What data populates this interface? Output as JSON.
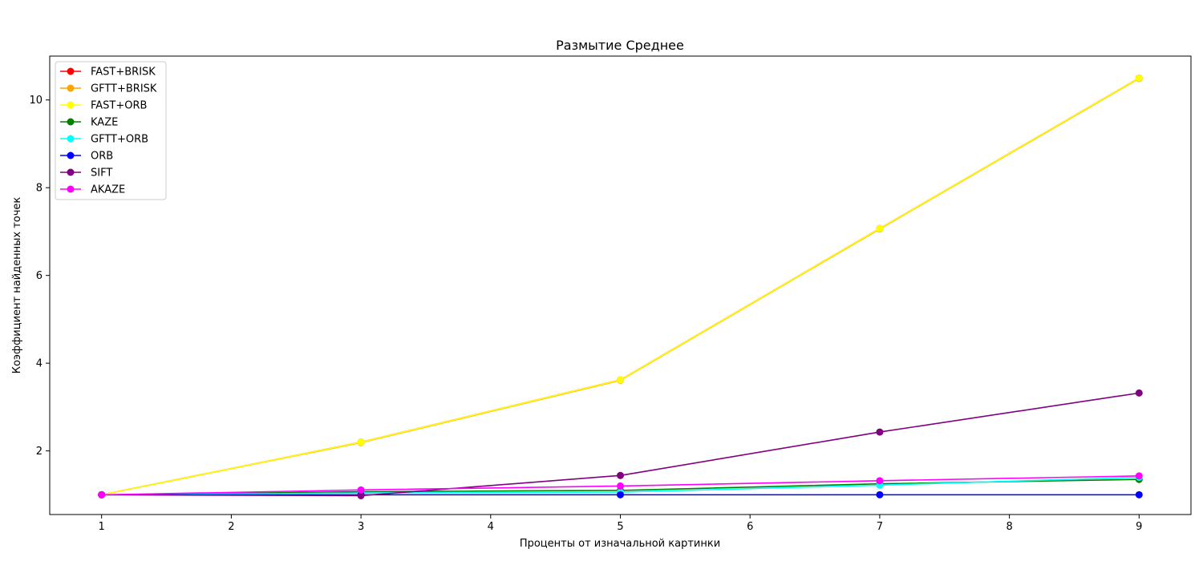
{
  "chart_data": {
    "type": "line",
    "title": "Размытие Среднее",
    "xlabel": "Проценты от изначальной картинки",
    "ylabel": "Коэффициент найденных точек",
    "x": [
      1,
      3,
      5,
      7,
      9
    ],
    "xlim": [
      0.6,
      9.4
    ],
    "ylim": [
      0.55,
      11.0
    ],
    "xticks": [
      1,
      2,
      3,
      4,
      5,
      6,
      7,
      8,
      9
    ],
    "yticks": [
      2,
      4,
      6,
      8,
      10
    ],
    "grid": false,
    "legend_position": "top-left",
    "series": [
      {
        "name": "FAST+BRISK",
        "color": "#ff0000",
        "values": [
          1.0,
          2.2,
          3.62,
          7.07,
          10.5
        ]
      },
      {
        "name": "GFTT+BRISK",
        "color": "#ffa500",
        "values": [
          1.0,
          2.19,
          3.61,
          7.06,
          10.49
        ]
      },
      {
        "name": "FAST+ORB",
        "color": "#ffff00",
        "values": [
          1.0,
          2.2,
          3.62,
          7.07,
          10.5
        ]
      },
      {
        "name": "KAZE",
        "color": "#008000",
        "values": [
          1.0,
          1.07,
          1.1,
          1.25,
          1.35
        ]
      },
      {
        "name": "GFTT+ORB",
        "color": "#00ffff",
        "values": [
          1.0,
          1.04,
          1.06,
          1.22,
          1.4
        ]
      },
      {
        "name": "ORB",
        "color": "#0000ff",
        "values": [
          1.0,
          1.0,
          1.0,
          1.0,
          1.0
        ]
      },
      {
        "name": "SIFT",
        "color": "#800080",
        "values": [
          1.0,
          0.98,
          1.44,
          2.43,
          3.32
        ]
      },
      {
        "name": "AKAZE",
        "color": "#ff00ff",
        "values": [
          1.0,
          1.11,
          1.2,
          1.32,
          1.43
        ]
      }
    ]
  }
}
